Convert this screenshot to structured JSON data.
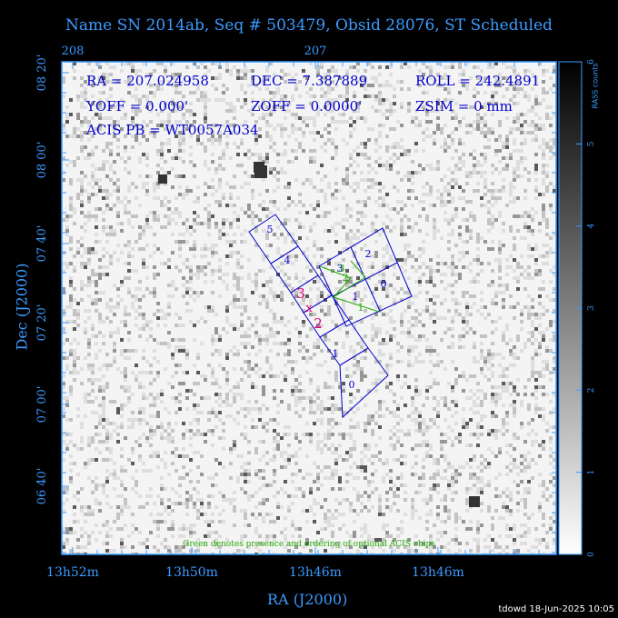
{
  "title": "Name SN 2014ab, Seq # 503479, Obsid 28076, ST Scheduled",
  "info_lines": [
    "RA = 207.024958",
    "DEC = 7.387889",
    "ROLL = 242.4891",
    "YOFF =    0.000'",
    "ZOFF =   0.0000'",
    "ZSIM = 0 mm",
    "ACIS PB = WT0057A034"
  ],
  "legend_note": "Green denotes presence and ordering of optional ACIS chips",
  "footer": "tdowd 18-Jun-2025 10:05",
  "colors": {
    "axis": "#3b9bff",
    "chip_outline": "#0000cc",
    "optional": "#22aa00",
    "target": "#dd0077"
  },
  "chart_data": {
    "type": "heatmap",
    "xlabel": "RA (J2000)",
    "ylabel": "Dec (J2000)",
    "x_ticks_bottom": [
      "13h52m",
      "13h50m",
      "13h46m",
      "13h46m"
    ],
    "x_ticks_top": [
      "208",
      "207"
    ],
    "y_ticks": [
      "08 20'",
      "08 00'",
      "07 40'",
      "07 20'",
      "07 00'",
      "06 40'"
    ],
    "colorbar": {
      "label": "RASS counts",
      "ticks": [
        "0",
        "1",
        "2",
        "3",
        "4",
        "5",
        "6"
      ],
      "range": [
        0,
        6
      ]
    },
    "chips_primary": [
      "5",
      "4",
      "3",
      "2",
      "1",
      "0"
    ],
    "chips_acis_i": [
      "3",
      "2",
      "1",
      "0"
    ],
    "chips_optional": [
      "3",
      "2",
      "1"
    ],
    "target_markers": [
      "3",
      "2"
    ]
  }
}
